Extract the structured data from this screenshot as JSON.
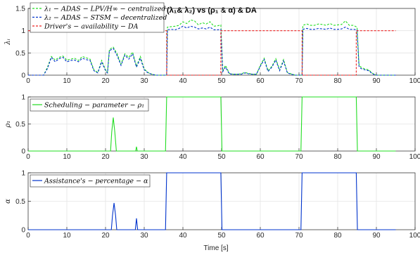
{
  "figure": {
    "title": "(λ₁& λ₂) vs (ρ₁ & α) & DA",
    "xlabel": "Time [s]",
    "colors": {
      "green": "#22dd22",
      "blue": "#0033cc",
      "red": "#ee2222",
      "grid": "#e4e4e4",
      "axis": "#262626"
    }
  },
  "chart_data": [
    {
      "type": "line",
      "title": "(λ₁& λ₂) vs (ρ₁ & α) & DA",
      "xlabel": "",
      "ylabel": "λᵢ",
      "xlim": [
        0,
        100
      ],
      "ylim": [
        0,
        1.5
      ],
      "xticks": [
        "0",
        "10",
        "20",
        "30",
        "40",
        "50",
        "60",
        "70",
        "80",
        "90",
        "100"
      ],
      "yticks": [
        "0",
        "0.5",
        "1",
        "1.5"
      ],
      "grid": true,
      "legend": "top-left",
      "series": [
        {
          "name": "λ₁ − ADAS − LPV/H∞ − centralized",
          "color": "#22dd22",
          "style": "dashed",
          "x": [
            0,
            4,
            5,
            6,
            7,
            8,
            9,
            10,
            11,
            12,
            13,
            14,
            15,
            16,
            17,
            18,
            19,
            20,
            20.5,
            21,
            22,
            23,
            24,
            25,
            26,
            27,
            28,
            29,
            30,
            31,
            32,
            33,
            34,
            35,
            35.8,
            36,
            37,
            38,
            39,
            40,
            41,
            42,
            43,
            44,
            45,
            46,
            47,
            48,
            49,
            49.8,
            50.3,
            51,
            52,
            53,
            54,
            55,
            56,
            57,
            58,
            59,
            60,
            61,
            62,
            63,
            64,
            65,
            66,
            67,
            68,
            69,
            70,
            70.8,
            71,
            72,
            73,
            74,
            75,
            76,
            77,
            78,
            79,
            80,
            81,
            82,
            83,
            84,
            85,
            85.5,
            86,
            87,
            88,
            89,
            90,
            91,
            92,
            93,
            94,
            95
          ],
          "values": [
            0,
            0,
            0.18,
            0.42,
            0.34,
            0.4,
            0.43,
            0.34,
            0.36,
            0.38,
            0.33,
            0.42,
            0.39,
            0.36,
            0.12,
            0.06,
            0.33,
            0.12,
            0.06,
            0.58,
            0.63,
            0.48,
            0.25,
            0.48,
            0.4,
            0.52,
            0.2,
            0.42,
            0.14,
            0.06,
            0.02,
            0,
            0,
            0,
            0,
            1.08,
            1.09,
            1.1,
            1.12,
            1.2,
            1.16,
            1.24,
            1.22,
            1.13,
            1.18,
            1.15,
            1.2,
            1.1,
            1.11,
            1.13,
            0.1,
            0.22,
            0.04,
            0.02,
            0.02,
            0.03,
            0.06,
            0.04,
            0.02,
            0.02,
            0.22,
            0.38,
            0.1,
            0.2,
            0.37,
            0.12,
            0.35,
            0.06,
            0.03,
            0,
            0,
            0,
            1.12,
            1.15,
            1.12,
            1.12,
            1.15,
            1.14,
            1.12,
            1.16,
            1.12,
            1.13,
            1.14,
            1.22,
            1.12,
            1.12,
            1.08,
            0.25,
            0.18,
            0.14,
            0.12,
            0.04,
            0,
            0,
            0,
            0,
            0,
            0
          ]
        },
        {
          "name": "λ₂ − ADAS − STSM − decentralized",
          "color": "#0033cc",
          "style": "dashed",
          "x": [
            0,
            4,
            5,
            6,
            7,
            8,
            9,
            10,
            11,
            12,
            13,
            14,
            15,
            16,
            17,
            18,
            19,
            20,
            20.5,
            21,
            22,
            23,
            24,
            25,
            26,
            27,
            28,
            29,
            30,
            31,
            32,
            33,
            34,
            35,
            35.8,
            36,
            37,
            38,
            39,
            40,
            41,
            42,
            43,
            44,
            45,
            46,
            47,
            48,
            49,
            49.8,
            50.3,
            51,
            52,
            53,
            54,
            55,
            56,
            57,
            58,
            59,
            60,
            61,
            62,
            63,
            64,
            65,
            66,
            67,
            68,
            69,
            70,
            70.8,
            71,
            72,
            73,
            74,
            75,
            76,
            77,
            78,
            79,
            80,
            81,
            82,
            83,
            84,
            85,
            85.5,
            86,
            87,
            88,
            89,
            90,
            91,
            92,
            93,
            94,
            95
          ],
          "values": [
            0,
            0,
            0.15,
            0.4,
            0.3,
            0.37,
            0.4,
            0.3,
            0.33,
            0.34,
            0.3,
            0.38,
            0.35,
            0.33,
            0.1,
            0.05,
            0.3,
            0.1,
            0.05,
            0.55,
            0.6,
            0.44,
            0.22,
            0.45,
            0.36,
            0.48,
            0.18,
            0.38,
            0.12,
            0.05,
            0.02,
            0,
            0,
            0,
            0,
            1.02,
            1.03,
            1.02,
            1.05,
            1.1,
            1.06,
            1.1,
            1.08,
            1.04,
            1.06,
            1.04,
            1.08,
            1.02,
            1.02,
            1.03,
            0.08,
            0.18,
            0.03,
            0.02,
            0.02,
            0.02,
            0.05,
            0.03,
            0.02,
            0.02,
            0.2,
            0.35,
            0.08,
            0.18,
            0.34,
            0.1,
            0.32,
            0.05,
            0.02,
            0,
            0,
            0,
            1.03,
            1.05,
            1.03,
            1.03,
            1.05,
            1.04,
            1.03,
            1.06,
            1.03,
            1.03,
            1.04,
            1.08,
            1.03,
            1.03,
            1.02,
            0.2,
            0.15,
            0.12,
            0.1,
            0.03,
            0,
            0,
            0,
            0,
            0,
            0
          ]
        },
        {
          "name": "Driver's − availability − DA",
          "color": "#ee2222",
          "style": "dashed",
          "x": [
            0,
            35.8,
            35.8,
            49.8,
            49.8,
            70.8,
            70.8,
            84.8,
            84.8,
            95
          ],
          "values": [
            1,
            1,
            0,
            0,
            1,
            1,
            0,
            0,
            1,
            1
          ]
        }
      ]
    },
    {
      "type": "line",
      "ylabel": "ρ₁",
      "xlim": [
        0,
        100
      ],
      "ylim": [
        0,
        1
      ],
      "xticks": [
        "0",
        "10",
        "20",
        "30",
        "40",
        "50",
        "60",
        "70",
        "80",
        "90",
        "100"
      ],
      "yticks": [
        "0",
        "0.5",
        "1"
      ],
      "grid": true,
      "legend": "top-left",
      "series": [
        {
          "name": "Scheduling − parameter − ρ₁",
          "color": "#22dd22",
          "style": "solid",
          "x": [
            0,
            21.3,
            21.6,
            22,
            22.4,
            22.8,
            27.8,
            28,
            28.2,
            35.5,
            35.8,
            49.8,
            50.1,
            70.5,
            70.8,
            84.8,
            85.1,
            95
          ],
          "values": [
            0,
            0,
            0.35,
            0.62,
            0.35,
            0,
            0,
            0.08,
            0,
            0,
            1,
            1,
            0,
            0,
            1,
            1,
            0,
            0
          ]
        }
      ]
    },
    {
      "type": "line",
      "ylabel": "α",
      "xlim": [
        0,
        100
      ],
      "ylim": [
        0,
        1
      ],
      "xticks": [
        "0",
        "10",
        "20",
        "30",
        "40",
        "50",
        "60",
        "70",
        "80",
        "90",
        "100"
      ],
      "yticks": [
        "0",
        "0.5",
        "1"
      ],
      "grid": true,
      "legend": "top-left",
      "series": [
        {
          "name": "Assistance's − percentage − α",
          "color": "#0033cc",
          "style": "solid",
          "x": [
            0,
            21.5,
            21.8,
            22.2,
            22.6,
            22.9,
            27.7,
            28,
            28.3,
            35.5,
            35.8,
            49.8,
            50.1,
            70.5,
            70.8,
            84.8,
            85.1,
            95
          ],
          "values": [
            0,
            0,
            0.25,
            0.47,
            0.25,
            0,
            0,
            0.2,
            0,
            0,
            1,
            1,
            0,
            0,
            1,
            1,
            0,
            0
          ]
        }
      ]
    }
  ]
}
